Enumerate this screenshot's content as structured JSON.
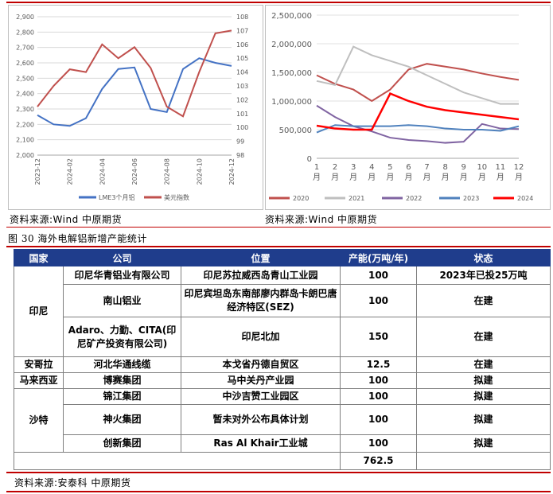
{
  "left_chart": {
    "legend": [
      "LME3个月铝",
      "美元指数"
    ],
    "y_left_ticks": [
      "2,900",
      "2,800",
      "2,700",
      "2,600",
      "2,500",
      "2,400",
      "2,300",
      "2,200",
      "2,100",
      "2,000"
    ],
    "y_right_ticks": [
      "108",
      "107",
      "106",
      "105",
      "104",
      "103",
      "102",
      "101",
      "100",
      "99",
      "98"
    ],
    "x_ticks": [
      "2023-12",
      "2024-02",
      "2024-04",
      "2024-06",
      "2024-08",
      "2024-10",
      "2024-12"
    ],
    "colors": {
      "lme": "#4472c4",
      "usd": "#c0504d"
    }
  },
  "right_chart": {
    "y_ticks": [
      "2,500,000",
      "2,000,000",
      "1,500,000",
      "1,000,000",
      "500,000",
      "0"
    ],
    "months": [
      "1月",
      "2月",
      "3月",
      "4月",
      "5月",
      "6月",
      "7月",
      "8月",
      "9月",
      "10月",
      "11月",
      "12月"
    ],
    "legend": [
      "2020",
      "2021",
      "2022",
      "2023",
      "2024"
    ],
    "colors": {
      "2020": "#c0504d",
      "2021": "#bfbfbf",
      "2022": "#8064a2",
      "2023": "#4f81bd",
      "2024": "#ff0000"
    }
  },
  "chart_data": [
    {
      "type": "line",
      "title": "",
      "x": [
        "2023-12",
        "2024-01",
        "2024-02",
        "2024-03",
        "2024-04",
        "2024-05",
        "2024-06",
        "2024-07",
        "2024-08",
        "2024-09",
        "2024-10",
        "2024-11",
        "2024-12"
      ],
      "series": [
        {
          "name": "LME3个月铝",
          "axis": "left",
          "values": [
            2260,
            2200,
            2190,
            2240,
            2430,
            2560,
            2570,
            2300,
            2280,
            2560,
            2630,
            2600,
            2580
          ]
        },
        {
          "name": "美元指数",
          "axis": "right",
          "values": [
            101.5,
            103.0,
            104.2,
            104.0,
            106.0,
            105.0,
            105.8,
            104.3,
            101.5,
            100.8,
            104.0,
            106.8,
            107.0
          ]
        }
      ],
      "ylim_left": [
        2000,
        2900
      ],
      "ylim_right": [
        98,
        108
      ],
      "legend_position": "bottom"
    },
    {
      "type": "line",
      "title": "",
      "categories": [
        "1月",
        "2月",
        "3月",
        "4月",
        "5月",
        "6月",
        "7月",
        "8月",
        "9月",
        "10月",
        "11月",
        "12月"
      ],
      "series": [
        {
          "name": "2020",
          "values": [
            1450000,
            1300000,
            1200000,
            1000000,
            1200000,
            1550000,
            1650000,
            1600000,
            1550000,
            1480000,
            1420000,
            1370000
          ]
        },
        {
          "name": "2021",
          "values": [
            1350000,
            1280000,
            1950000,
            1800000,
            1700000,
            1600000,
            1450000,
            1300000,
            1150000,
            1050000,
            950000,
            950000
          ]
        },
        {
          "name": "2022",
          "values": [
            920000,
            720000,
            560000,
            470000,
            360000,
            320000,
            300000,
            270000,
            290000,
            600000,
            520000,
            510000
          ]
        },
        {
          "name": "2023",
          "values": [
            450000,
            580000,
            560000,
            560000,
            560000,
            580000,
            560000,
            520000,
            500000,
            500000,
            480000,
            560000
          ]
        },
        {
          "name": "2024",
          "values": [
            570000,
            520000,
            500000,
            500000,
            1130000,
            1000000,
            900000,
            840000,
            800000,
            760000,
            720000,
            680000
          ]
        }
      ],
      "ylim": [
        0,
        2500000
      ],
      "legend_position": "bottom"
    }
  ],
  "sources": {
    "left": "资料来源:Wind 中原期货",
    "right": "资料来源:Wind 中原期货",
    "bottom": "资料来源:安泰科 中原期货"
  },
  "figure_title": "图 30 海外电解铝新增产能统计",
  "table": {
    "headers": [
      "国家",
      "公司",
      "位置",
      "产能(万吨/年)",
      "状态"
    ],
    "groups": [
      {
        "country": "印尼",
        "rows": [
          {
            "company": "印尼华青铝业有限公司",
            "location": "印尼苏拉威西岛青山工业园",
            "capacity": "100",
            "status": "2023年已投25万吨"
          },
          {
            "company": "南山铝业",
            "location": "印尼宾坦岛东南部廖内群岛卡朗巴唐经济特区(SEZ)",
            "capacity": "100",
            "status": "在建"
          },
          {
            "company": "Adaro、力勤、CITA(印尼矿产投资有限公司)",
            "location": "印尼北加",
            "capacity": "150",
            "status": "在建"
          }
        ]
      },
      {
        "country": "安哥拉",
        "rows": [
          {
            "company": "河北华通线缆",
            "location": "本戈省丹德自贸区",
            "capacity": "12.5",
            "status": "在建"
          }
        ]
      },
      {
        "country": "马来西亚",
        "rows": [
          {
            "company": "博赛集团",
            "location": "马中关丹产业园",
            "capacity": "100",
            "status": "拟建"
          }
        ]
      },
      {
        "country": "沙特",
        "rows": [
          {
            "company": "锦江集团",
            "location": "中沙吉赞工业园区",
            "capacity": "100",
            "status": "拟建"
          },
          {
            "company": "神火集团",
            "location": "暂未对外公布具体计划",
            "capacity": "100",
            "status": "拟建"
          },
          {
            "company": "创新集团",
            "location": "Ras Al Khair工业城",
            "capacity": "100",
            "status": "拟建"
          }
        ]
      }
    ],
    "total": "762.5"
  }
}
